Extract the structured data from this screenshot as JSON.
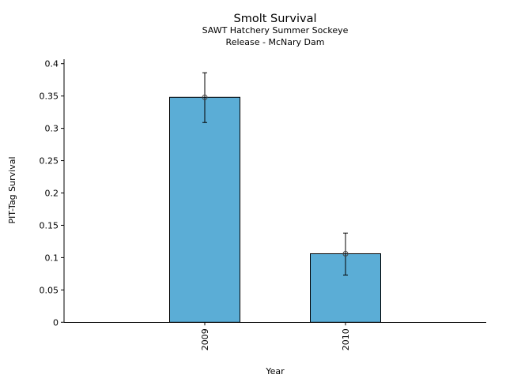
{
  "chart_data": {
    "type": "bar",
    "title": "Smolt Survival",
    "subtitle_lines": [
      "SAWT Hatchery Summer Sockeye",
      "Release - McNary Dam"
    ],
    "xlabel": "Year",
    "ylabel": "PIT-Tag Survival",
    "categories": [
      "2009",
      "2010"
    ],
    "values": [
      0.348,
      0.106
    ],
    "error_low": [
      0.309,
      0.073
    ],
    "error_high": [
      0.386,
      0.138
    ],
    "ylim": [
      0,
      0.406
    ],
    "yticks": [
      0,
      0.05,
      0.1,
      0.15,
      0.2,
      0.25,
      0.3,
      0.35,
      0.4
    ],
    "ytick_labels": [
      "0",
      "0.05",
      "0.1",
      "0.15",
      "0.2",
      "0.25",
      "0.3",
      "0.35",
      "0.4"
    ],
    "grid": false,
    "legend": "none",
    "bar_color": "#5badd6"
  }
}
